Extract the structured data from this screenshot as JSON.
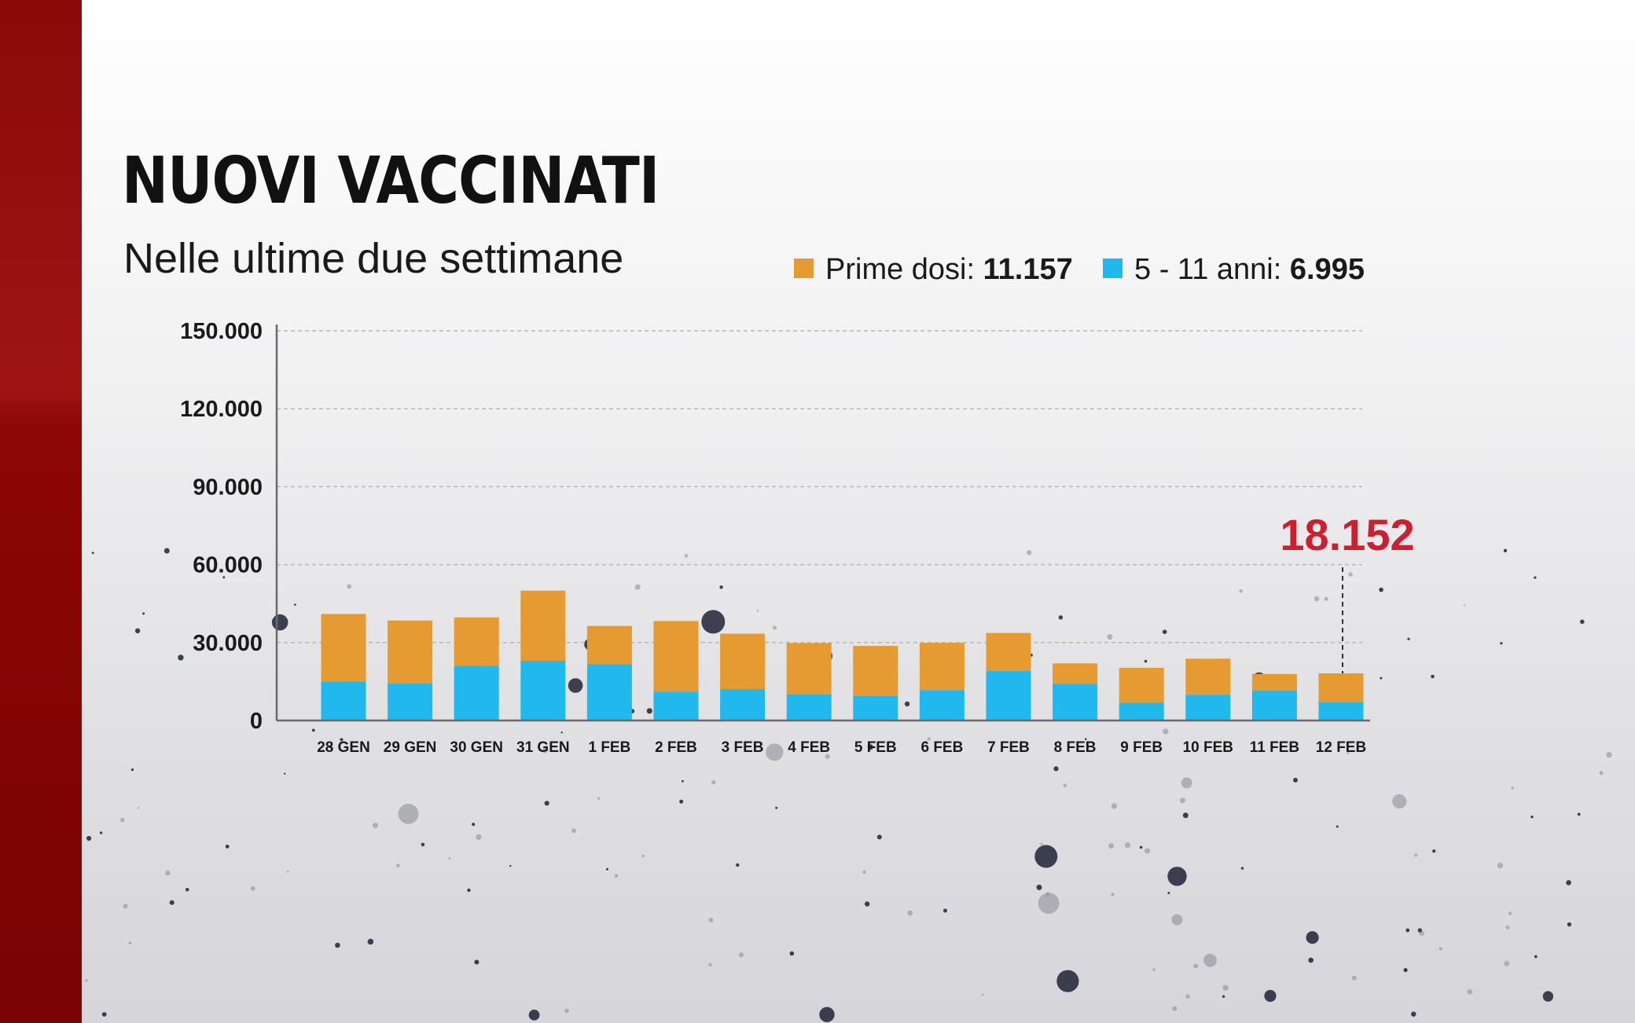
{
  "header": {
    "title": "NUOVI VACCINATI",
    "subtitle": "Nelle ultime due settimane"
  },
  "legend": [
    {
      "label": "Prime dosi:",
      "value": "11.157",
      "color": "#e59a32"
    },
    {
      "label": "5 - 11 anni:",
      "value": "6.995",
      "color": "#21b8ee"
    }
  ],
  "colors": {
    "accent_bar": "#8c0808",
    "callout": "#cc1f2f"
  },
  "chart_data": {
    "type": "bar",
    "stacked": true,
    "categories": [
      "28 GEN",
      "29 GEN",
      "30 GEN",
      "31 GEN",
      "1 FEB",
      "2 FEB",
      "3 FEB",
      "4 FEB",
      "5 FEB",
      "6 FEB",
      "7 FEB",
      "8 FEB",
      "9 FEB",
      "10 FEB",
      "11 FEB",
      "12 FEB"
    ],
    "series": [
      {
        "name": "5 - 11 anni",
        "color": "#21b8ee",
        "values": [
          15000,
          14300,
          21100,
          23000,
          21700,
          11100,
          12100,
          10000,
          9400,
          11700,
          19100,
          14100,
          6800,
          9900,
          11600,
          6995
        ]
      },
      {
        "name": "Prime dosi",
        "color": "#e59a32",
        "values": [
          26000,
          24200,
          18600,
          27000,
          14700,
          27200,
          21300,
          19800,
          19300,
          18200,
          14600,
          7900,
          13500,
          13900,
          6300,
          11157
        ]
      }
    ],
    "ylim": [
      0,
      150000
    ],
    "yticks": [
      0,
      30000,
      60000,
      90000,
      120000,
      150000
    ],
    "ytick_labels": [
      "0",
      "30.000",
      "60.000",
      "90.000",
      "120.000",
      "150.000"
    ],
    "grid": true,
    "legend_position": "top-right",
    "annotations": [
      {
        "category": "12 FEB",
        "text": "18.152"
      }
    ]
  }
}
